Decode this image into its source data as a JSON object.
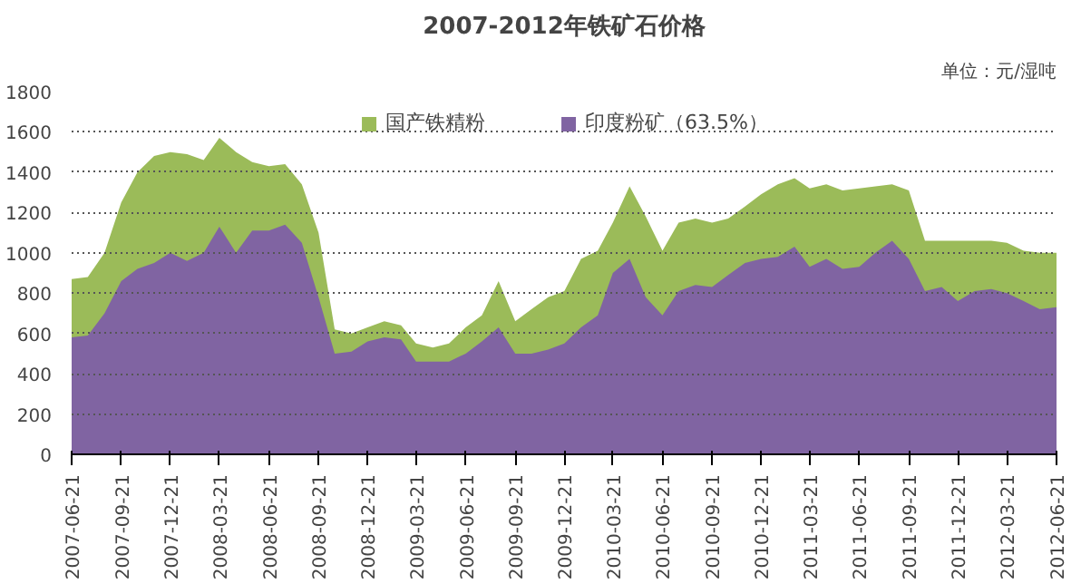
{
  "chart_data": {
    "type": "area",
    "title": "2007-2012年铁矿石价格",
    "annotations": [
      "单位：元/湿吨"
    ],
    "x": [
      "2007-06-21",
      "2007-07-21",
      "2007-08-21",
      "2007-09-21",
      "2007-10-21",
      "2007-11-21",
      "2007-12-21",
      "2008-01-21",
      "2008-02-21",
      "2008-03-21",
      "2008-04-21",
      "2008-05-21",
      "2008-06-21",
      "2008-07-21",
      "2008-08-21",
      "2008-09-21",
      "2008-10-21",
      "2008-11-21",
      "2008-12-21",
      "2009-01-21",
      "2009-02-21",
      "2009-03-21",
      "2009-04-21",
      "2009-05-21",
      "2009-06-21",
      "2009-07-21",
      "2009-08-21",
      "2009-09-21",
      "2009-10-21",
      "2009-11-21",
      "2009-12-21",
      "2010-01-21",
      "2010-02-21",
      "2010-03-21",
      "2010-04-21",
      "2010-05-21",
      "2010-06-21",
      "2010-07-21",
      "2010-08-21",
      "2010-09-21",
      "2010-10-21",
      "2010-11-21",
      "2010-12-21",
      "2011-01-21",
      "2011-02-21",
      "2011-03-21",
      "2011-04-21",
      "2011-05-21",
      "2011-06-21",
      "2011-07-21",
      "2011-08-21",
      "2011-09-21",
      "2011-10-21",
      "2011-11-21",
      "2011-12-21",
      "2012-01-21",
      "2012-02-21",
      "2012-03-21",
      "2012-04-21",
      "2012-05-21",
      "2012-06-21"
    ],
    "series": [
      {
        "name": "国产铁精粉",
        "color": "#9bbb59",
        "values": [
          870,
          880,
          1000,
          1250,
          1400,
          1480,
          1500,
          1490,
          1460,
          1570,
          1500,
          1450,
          1430,
          1440,
          1340,
          1100,
          620,
          600,
          630,
          660,
          640,
          550,
          530,
          550,
          630,
          690,
          860,
          660,
          720,
          780,
          810,
          970,
          1010,
          1150,
          1330,
          1180,
          1010,
          1150,
          1170,
          1150,
          1170,
          1230,
          1290,
          1340,
          1370,
          1320,
          1340,
          1310,
          1320,
          1330,
          1340,
          1310,
          1060,
          1060,
          1060,
          1060,
          1060,
          1050,
          1010,
          1000,
          1000
        ]
      },
      {
        "name": "印度粉矿（63.5%）",
        "color": "#8064a2",
        "values": [
          580,
          590,
          700,
          860,
          920,
          950,
          1000,
          960,
          1000,
          1130,
          1000,
          1110,
          1110,
          1140,
          1050,
          780,
          500,
          510,
          560,
          580,
          570,
          460,
          460,
          460,
          500,
          560,
          630,
          500,
          500,
          520,
          550,
          630,
          690,
          900,
          970,
          780,
          690,
          810,
          840,
          830,
          890,
          950,
          970,
          980,
          1030,
          930,
          970,
          920,
          930,
          1000,
          1060,
          970,
          810,
          830,
          760,
          810,
          820,
          800,
          760,
          720,
          730
        ]
      }
    ],
    "ylim": [
      0,
      1800
    ],
    "yticks": [
      0,
      200,
      400,
      600,
      800,
      1000,
      1200,
      1400,
      1600,
      1800
    ],
    "xlim": [
      "2007-06-21",
      "2012-06-21"
    ],
    "xticks": [
      "2007-06-21",
      "2007-09-21",
      "2007-12-21",
      "2008-03-21",
      "2008-06-21",
      "2008-09-21",
      "2008-12-21",
      "2009-03-21",
      "2009-06-21",
      "2009-09-21",
      "2009-12-21",
      "2010-03-21",
      "2010-06-21",
      "2010-09-21",
      "2010-12-21",
      "2011-03-21",
      "2011-06-21",
      "2011-09-21",
      "2011-12-21",
      "2012-03-21",
      "2012-06-21"
    ],
    "grid": "y",
    "legend": "top"
  }
}
